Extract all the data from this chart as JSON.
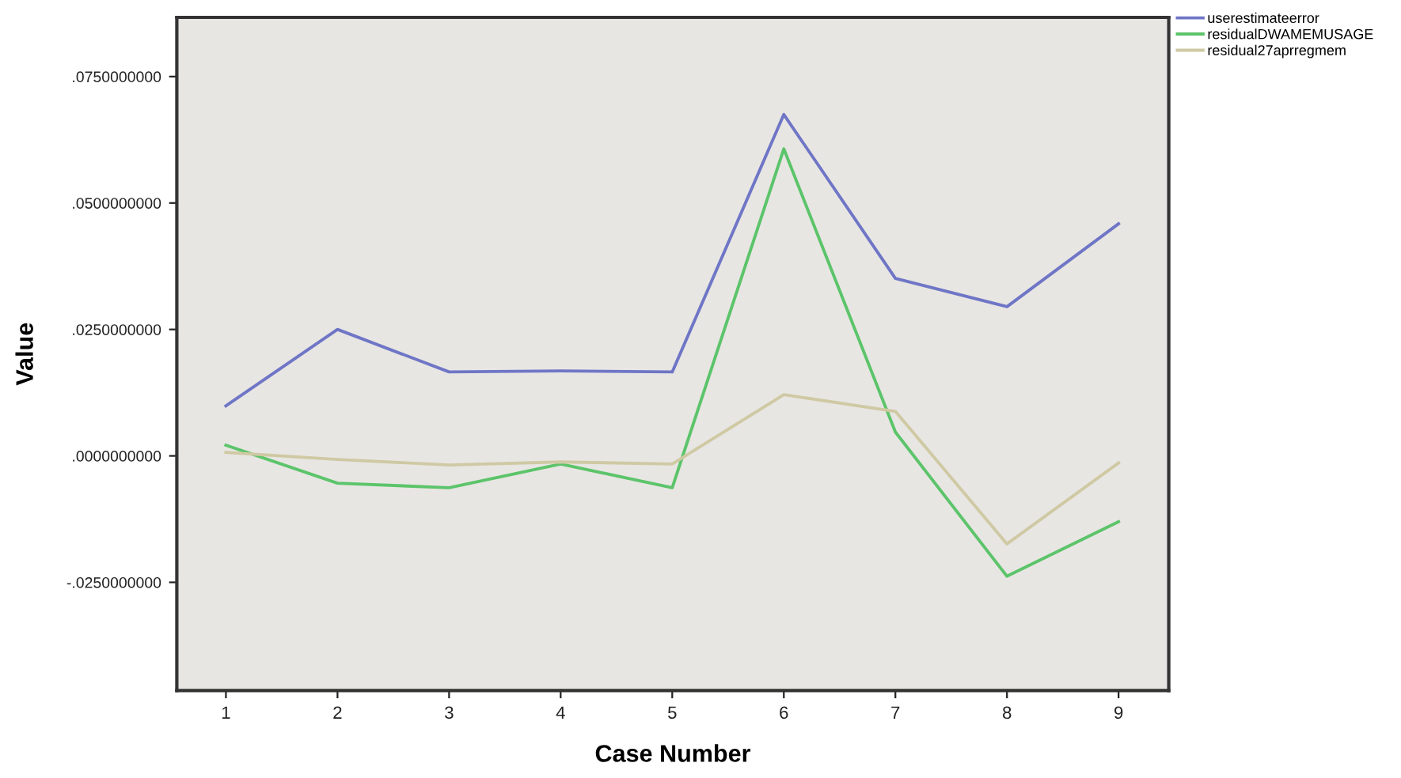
{
  "chart_data": {
    "type": "line",
    "xlabel": "Case Number",
    "ylabel": "Value",
    "x": [
      1,
      2,
      3,
      4,
      5,
      6,
      7,
      8,
      9
    ],
    "xlim": [
      0.56,
      9.45
    ],
    "xticks": [
      1,
      2,
      3,
      4,
      5,
      6,
      7,
      8,
      9
    ],
    "ylim": [
      -0.0464,
      0.0867
    ],
    "yticks": [
      {
        "value": -0.025,
        "label": "-.0250000000"
      },
      {
        "value": 0,
        "label": ".0000000000"
      },
      {
        "value": 0.025,
        "label": ".0250000000"
      },
      {
        "value": 0.05,
        "label": ".0500000000"
      },
      {
        "value": 0.075,
        "label": ".0750000000"
      }
    ],
    "grid": false,
    "legend": "top right",
    "marker": "none",
    "line_style": "solid",
    "series": [
      {
        "name": "userestimateerror",
        "color": "#6f76c6",
        "values": [
          0.0099,
          0.025,
          0.0166,
          0.0168,
          0.0166,
          0.0675,
          0.0351,
          0.0295,
          0.0459
        ]
      },
      {
        "name": "residualDWAMEMUSAGE",
        "color": "#5cc46a",
        "values": [
          0.0021,
          -0.0054,
          -0.0063,
          -0.0016,
          -0.0063,
          0.0607,
          0.0047,
          -0.0238,
          -0.013
        ]
      },
      {
        "name": "residual27aprregmem",
        "color": "#cfc9a4",
        "values": [
          0.0007,
          -0.0007,
          -0.0018,
          -0.0012,
          -0.0016,
          0.0121,
          0.0088,
          -0.0174,
          -0.0014
        ]
      }
    ]
  }
}
